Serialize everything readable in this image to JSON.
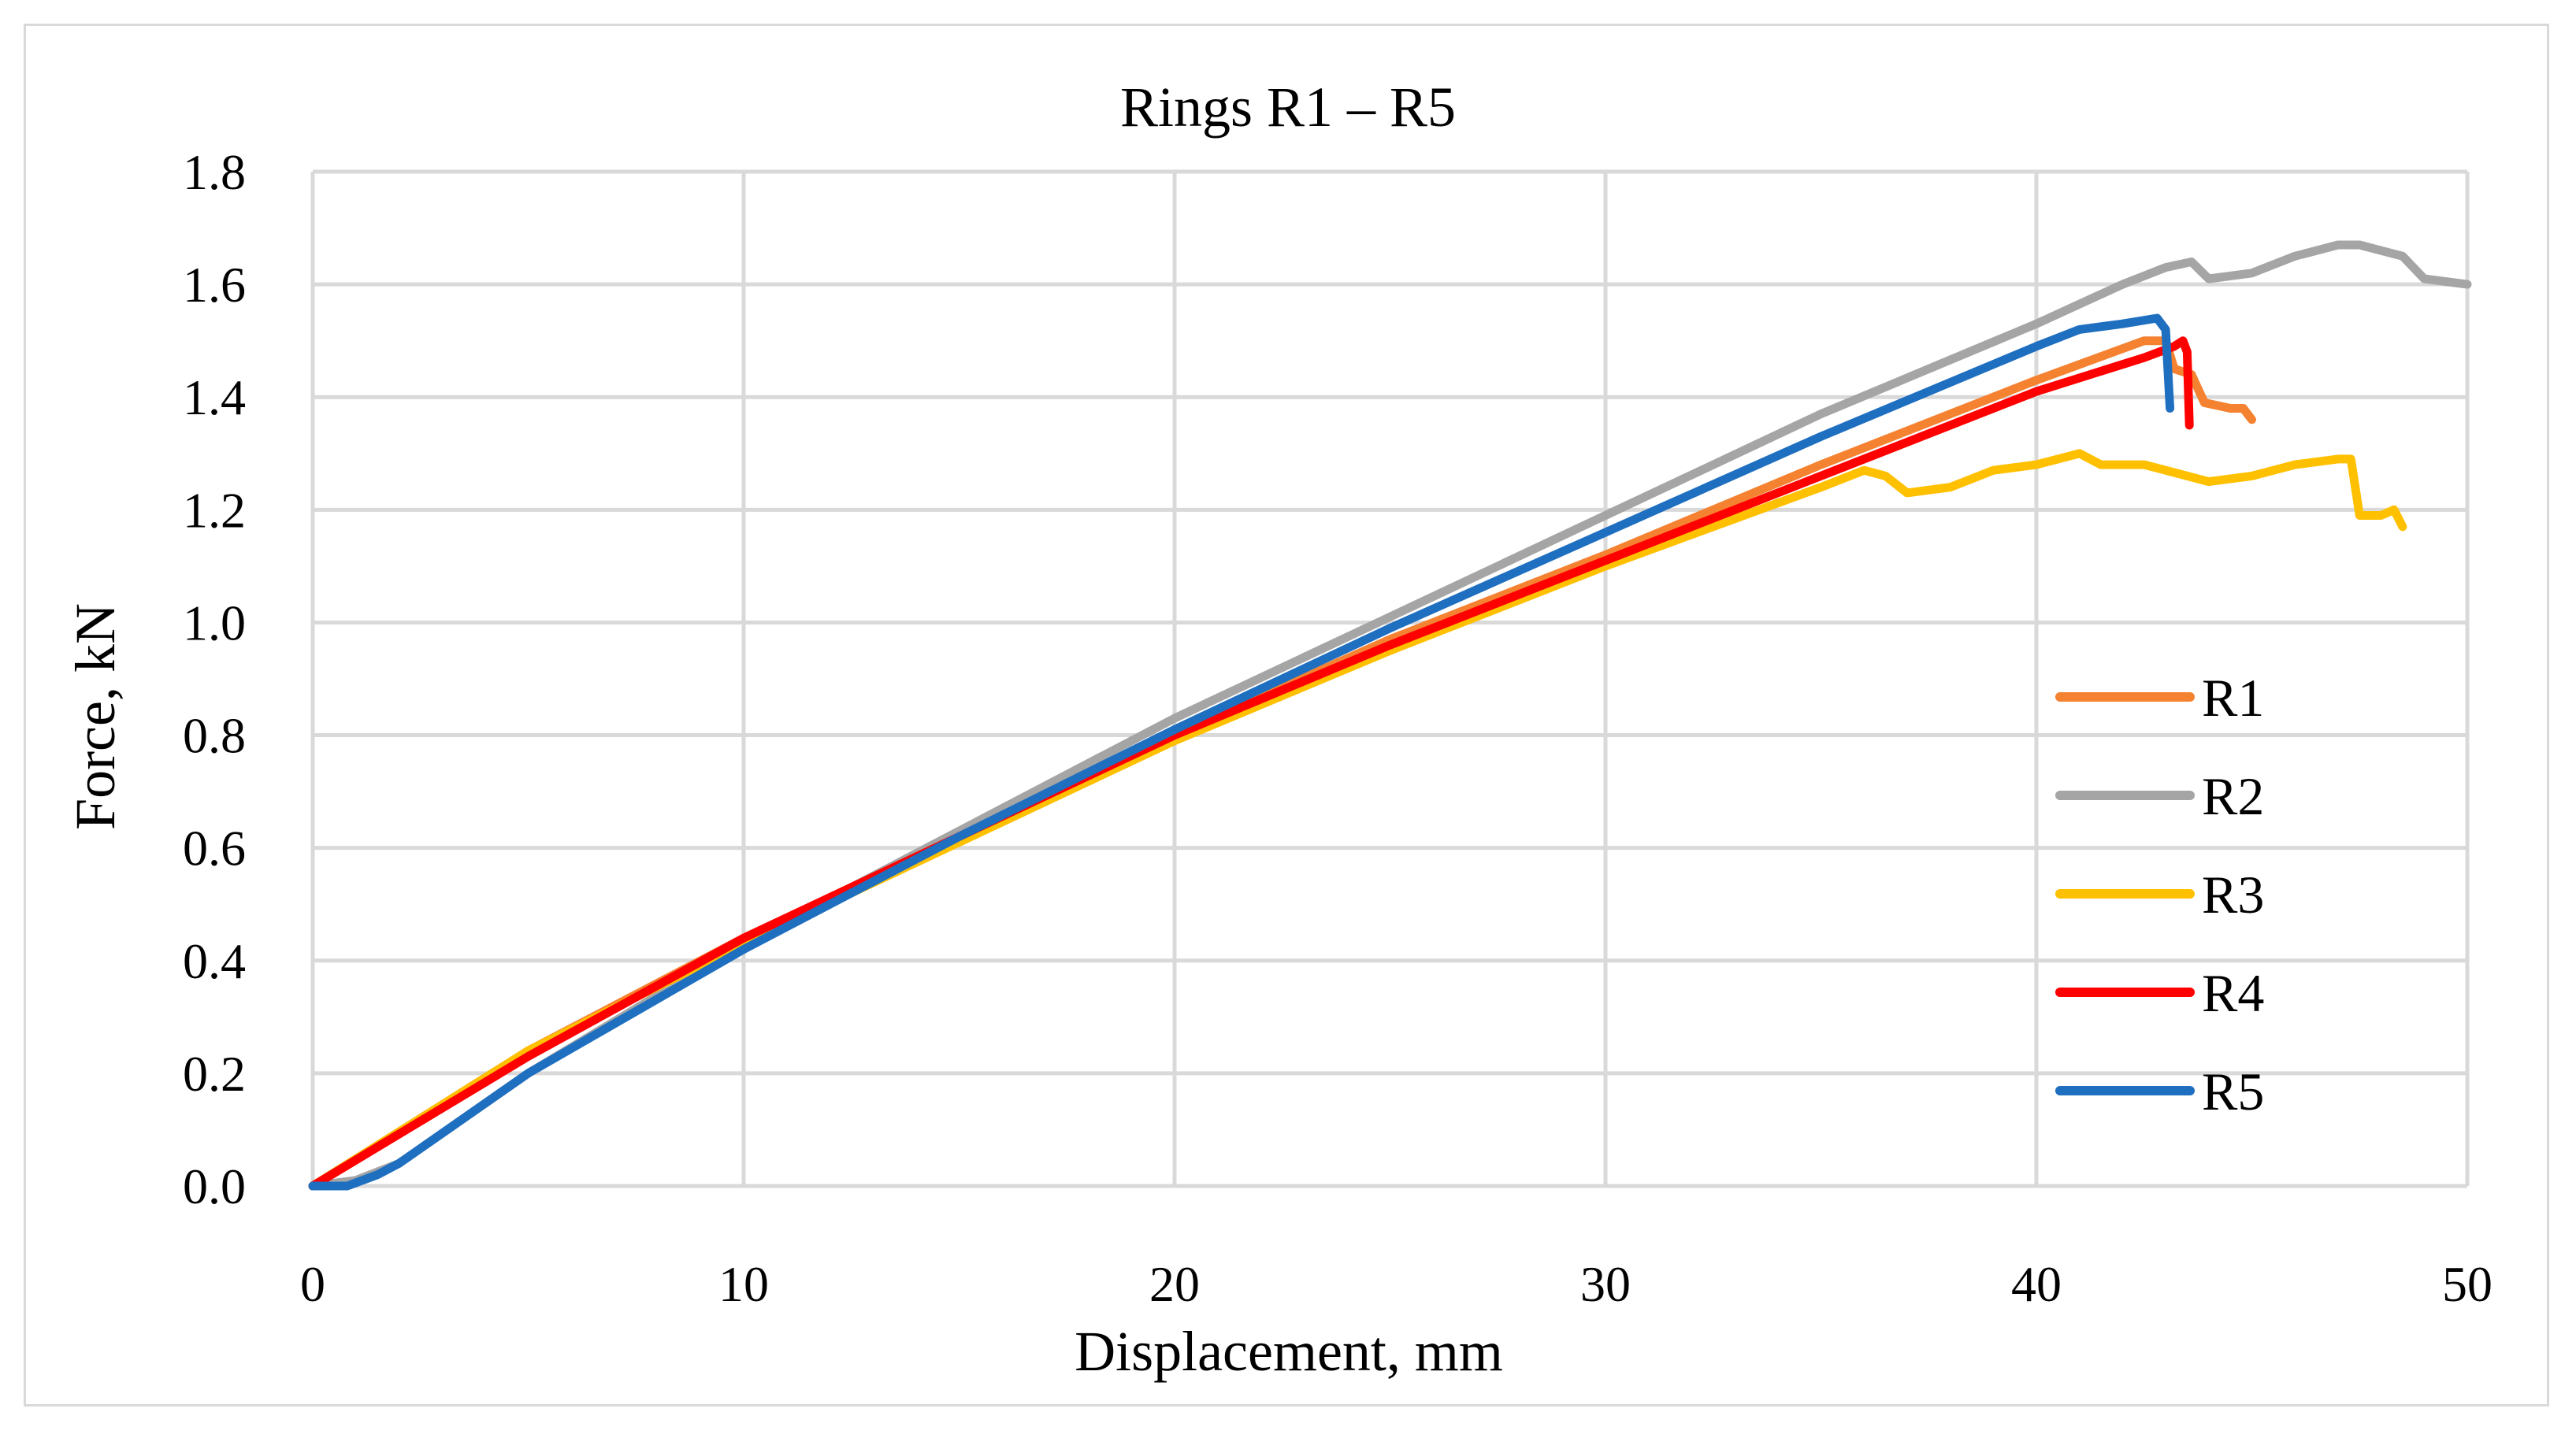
{
  "chart_data": {
    "type": "line",
    "title": "Rings R1 – R5",
    "xlabel": "Displacement, mm",
    "ylabel": "Force, kN",
    "xlim": [
      0,
      50
    ],
    "ylim": [
      0,
      1.8
    ],
    "xticks": [
      0,
      10,
      20,
      30,
      40,
      50
    ],
    "yticks": [
      0,
      0.2,
      0.4,
      0.6,
      0.8,
      1.0,
      1.2,
      1.4,
      1.6,
      1.8
    ],
    "xtick_labels": [
      "0",
      "10",
      "20",
      "30",
      "40",
      "50"
    ],
    "ytick_labels": [
      "0.0",
      "0.2",
      "0.4",
      "0.6",
      "0.8",
      "1.0",
      "1.2",
      "1.4",
      "1.6",
      "1.8"
    ],
    "grid": true,
    "legend_position": "right",
    "series": [
      {
        "name": "R1",
        "color": "#f58231",
        "points": [
          [
            0,
            0
          ],
          [
            5,
            0.24
          ],
          [
            10,
            0.44
          ],
          [
            15,
            0.62
          ],
          [
            20,
            0.8
          ],
          [
            25,
            0.97
          ],
          [
            30,
            1.12
          ],
          [
            35,
            1.28
          ],
          [
            40,
            1.43
          ],
          [
            42.5,
            1.5
          ],
          [
            43,
            1.5
          ],
          [
            43.2,
            1.45
          ],
          [
            43.6,
            1.44
          ],
          [
            43.9,
            1.39
          ],
          [
            44.5,
            1.38
          ],
          [
            44.8,
            1.38
          ],
          [
            45,
            1.36
          ]
        ]
      },
      {
        "name": "R2",
        "color": "#a5a5a5",
        "points": [
          [
            0,
            0
          ],
          [
            1,
            0.01
          ],
          [
            2,
            0.04
          ],
          [
            5,
            0.2
          ],
          [
            10,
            0.43
          ],
          [
            15,
            0.63
          ],
          [
            20,
            0.83
          ],
          [
            25,
            1.01
          ],
          [
            30,
            1.19
          ],
          [
            35,
            1.37
          ],
          [
            40,
            1.53
          ],
          [
            42,
            1.6
          ],
          [
            43,
            1.63
          ],
          [
            43.6,
            1.64
          ],
          [
            44,
            1.61
          ],
          [
            45,
            1.62
          ],
          [
            46,
            1.65
          ],
          [
            47,
            1.67
          ],
          [
            47.5,
            1.67
          ],
          [
            48,
            1.66
          ],
          [
            48.5,
            1.65
          ],
          [
            49,
            1.61
          ],
          [
            50,
            1.6
          ]
        ]
      },
      {
        "name": "R3",
        "color": "#ffc000",
        "points": [
          [
            0,
            0
          ],
          [
            5,
            0.24
          ],
          [
            10,
            0.43
          ],
          [
            15,
            0.61
          ],
          [
            20,
            0.79
          ],
          [
            25,
            0.95
          ],
          [
            30,
            1.1
          ],
          [
            35,
            1.24
          ],
          [
            36,
            1.27
          ],
          [
            36.5,
            1.26
          ],
          [
            37,
            1.23
          ],
          [
            38,
            1.24
          ],
          [
            39,
            1.27
          ],
          [
            40,
            1.28
          ],
          [
            41,
            1.3
          ],
          [
            41.5,
            1.28
          ],
          [
            42.5,
            1.28
          ],
          [
            43,
            1.27
          ],
          [
            44,
            1.25
          ],
          [
            45,
            1.26
          ],
          [
            46,
            1.28
          ],
          [
            47,
            1.29
          ],
          [
            47.3,
            1.29
          ],
          [
            47.5,
            1.19
          ],
          [
            48,
            1.19
          ],
          [
            48.3,
            1.2
          ],
          [
            48.5,
            1.17
          ]
        ]
      },
      {
        "name": "R4",
        "color": "#ff0000",
        "points": [
          [
            0,
            0
          ],
          [
            5,
            0.23
          ],
          [
            10,
            0.44
          ],
          [
            15,
            0.62
          ],
          [
            20,
            0.8
          ],
          [
            25,
            0.96
          ],
          [
            30,
            1.11
          ],
          [
            35,
            1.26
          ],
          [
            40,
            1.41
          ],
          [
            42.5,
            1.47
          ],
          [
            43.2,
            1.49
          ],
          [
            43.4,
            1.5
          ],
          [
            43.5,
            1.48
          ],
          [
            43.55,
            1.35
          ]
        ]
      },
      {
        "name": "R5",
        "color": "#1f6fc0",
        "points": [
          [
            0,
            0
          ],
          [
            0.8,
            0
          ],
          [
            1.5,
            0.02
          ],
          [
            2,
            0.04
          ],
          [
            5,
            0.2
          ],
          [
            10,
            0.42
          ],
          [
            15,
            0.62
          ],
          [
            20,
            0.81
          ],
          [
            25,
            0.99
          ],
          [
            30,
            1.16
          ],
          [
            35,
            1.33
          ],
          [
            40,
            1.49
          ],
          [
            41,
            1.52
          ],
          [
            42,
            1.53
          ],
          [
            42.8,
            1.54
          ],
          [
            43,
            1.52
          ],
          [
            43.1,
            1.38
          ]
        ]
      }
    ]
  }
}
